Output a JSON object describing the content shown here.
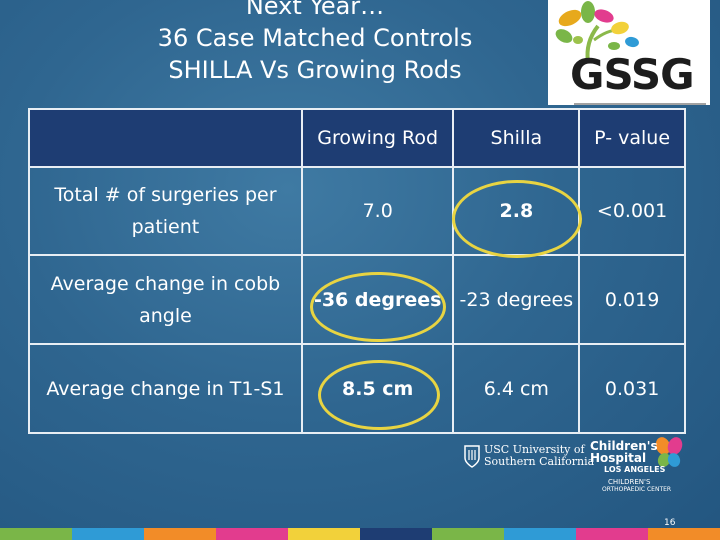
{
  "title": {
    "line1": "Next Year…",
    "line2": "36  Case Matched Controls",
    "line3": "SHILLA Vs Growing Rods"
  },
  "logo": {
    "text": "GSSG"
  },
  "table": {
    "headers": [
      "Growing Rod",
      "Shilla",
      "P- value"
    ],
    "rows": [
      {
        "label": "Total # of surgeries per patient",
        "growing_rod": "7.0",
        "shilla": "2.8",
        "p_value": "<0.001"
      },
      {
        "label": "Average change in cobb angle",
        "growing_rod": "-36 degrees",
        "shilla": "-23 degrees",
        "p_value": "0.019"
      },
      {
        "label": "Average change in T1-S1",
        "growing_rod": "8.5 cm",
        "shilla": "6.4 cm",
        "p_value": "0.031"
      }
    ]
  },
  "footer": {
    "usc": {
      "line1": "USC University of",
      "line2": "Southern California"
    },
    "chla": {
      "line1": "Children's",
      "line2": "Hospital",
      "line3": "LOS ANGELES",
      "line4": "CHILDREN'S",
      "line5": "ORTHOPAEDIC CENTER"
    },
    "page_number": "16"
  },
  "colors": {
    "background": "#2f6690",
    "table_header": "#1e3d73",
    "highlight_circle": "#e8d442"
  }
}
